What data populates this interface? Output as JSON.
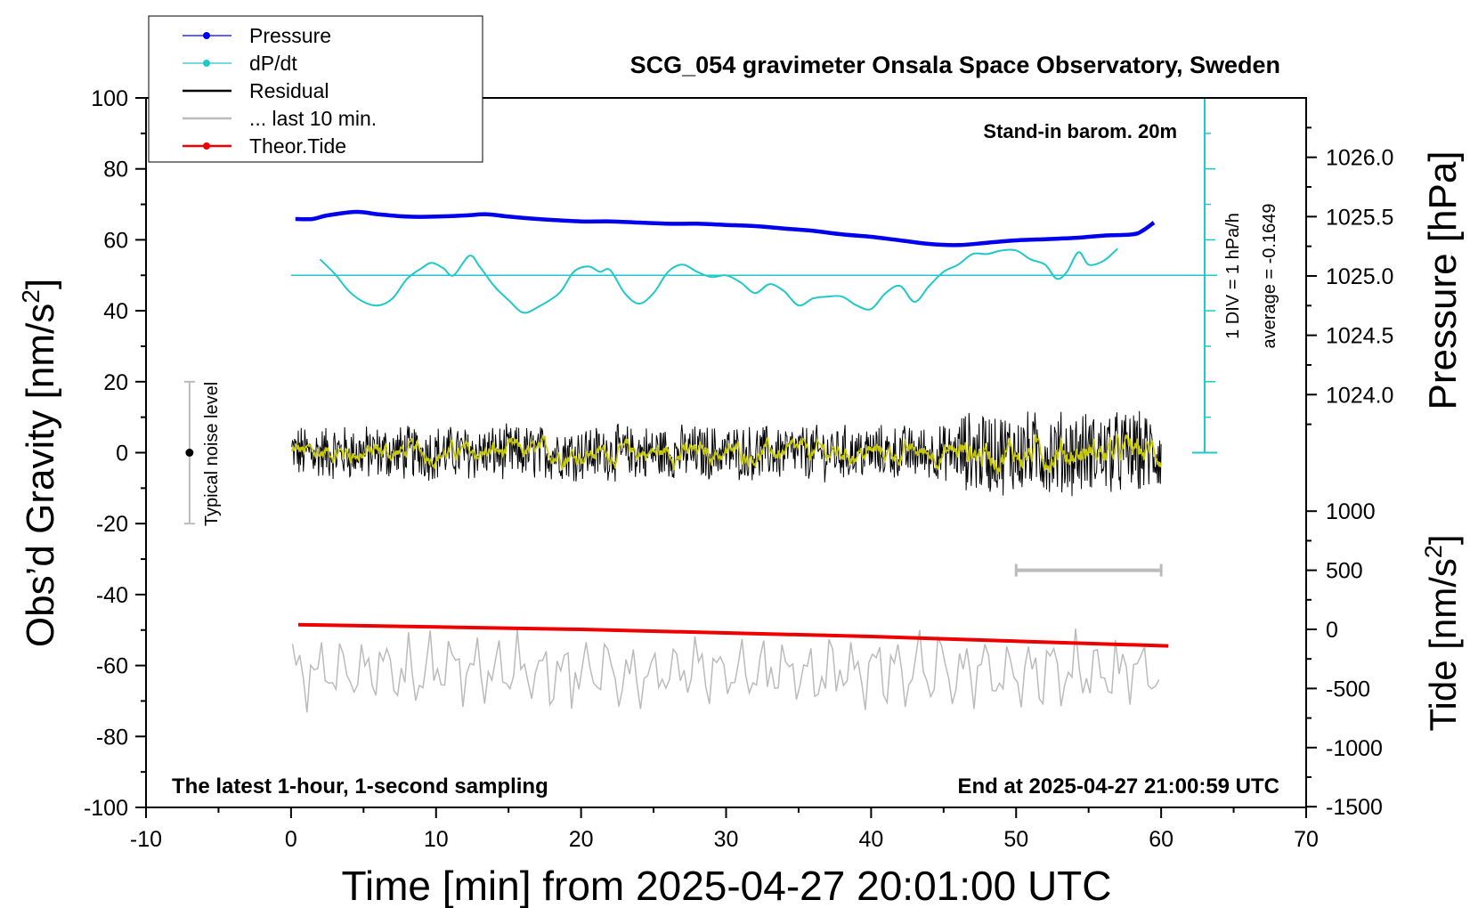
{
  "chart_data": {
    "type": "line",
    "title": "SCG_054 gravimeter Onsala Space Observatory, Sweden",
    "xlabel": "Time [min] from 2025-04-27 20:01:00 UTC",
    "ylabel_left": "Obs’d Gravity [nm/s",
    "ylabel_left_sup": "2",
    "ylabel_left_end": "]",
    "ylabel_right_pressure": "Pressure [hPa]",
    "ylabel_right_tide": "Tide [nm/s",
    "ylabel_right_tide_sup": "2",
    "ylabel_right_tide_end": "]",
    "xlim": [
      -10,
      70
    ],
    "ylim_left": [
      -100,
      100
    ],
    "pressure_ylim": [
      1023.5,
      1026.5
    ],
    "tide_ylim": [
      -1500,
      1000
    ],
    "xticks": [
      "-10",
      "0",
      "10",
      "20",
      "30",
      "40",
      "50",
      "60",
      "70"
    ],
    "yticks_left": [
      "100",
      "80",
      "60",
      "40",
      "20",
      "0",
      "-20",
      "-40",
      "-60",
      "-80",
      "-100"
    ],
    "pressure_ticks": [
      "1026.0",
      "1025.5",
      "1025.0",
      "1024.5",
      "1024.0"
    ],
    "tide_ticks": [
      "1000",
      "500",
      "0",
      "-500",
      "-1000",
      "-1500"
    ],
    "legend_position": "top-left",
    "legend": [
      {
        "name": "Pressure",
        "color": "#0000ee",
        "marker": true
      },
      {
        "name": "dP/dt",
        "color": "#20c8c8",
        "marker": true
      },
      {
        "name": "Residual",
        "color": "#000000",
        "marker": false
      },
      {
        "name": "... last 10 min.",
        "color": "#bbbbbb",
        "marker": false
      },
      {
        "name": "Theor.Tide",
        "color": "#ee0000",
        "marker": true
      }
    ],
    "annotations": {
      "barometer": "Stand-in barom. 20m",
      "div_label": "1 DIV = 1 hPa/h",
      "average": "average = -0.1649",
      "noise": "Typical noise level",
      "bottom_left": "The latest 1-hour, 1-second sampling",
      "bottom_right": "End at 2025-04-27 21:00:59 UTC"
    },
    "pressure_series": {
      "x": [
        0.3,
        1.5,
        2.5,
        4.5,
        6,
        8,
        10,
        12,
        13.5,
        15,
        17,
        20,
        22,
        24,
        26,
        28,
        30,
        32,
        34,
        36,
        38,
        40,
        42,
        44,
        46,
        48,
        50,
        52,
        54,
        56,
        58,
        58.7,
        59.5
      ],
      "y": [
        1025.48,
        1025.48,
        1025.51,
        1025.54,
        1025.52,
        1025.5,
        1025.5,
        1025.51,
        1025.52,
        1025.5,
        1025.48,
        1025.46,
        1025.46,
        1025.45,
        1025.44,
        1025.44,
        1025.43,
        1025.42,
        1025.4,
        1025.38,
        1025.35,
        1025.33,
        1025.3,
        1025.27,
        1025.26,
        1025.28,
        1025.3,
        1025.31,
        1025.32,
        1025.34,
        1025.35,
        1025.38,
        1025.45
      ]
    },
    "dpdt_series": {
      "x": [
        2,
        3,
        4,
        5,
        6,
        7,
        8,
        9,
        9.7,
        10.5,
        11.2,
        12.3,
        13,
        14,
        15,
        16,
        17,
        18.5,
        19.5,
        20.5,
        21.3,
        22,
        23,
        24,
        25,
        26,
        27,
        28,
        29,
        30,
        31,
        32,
        33,
        34,
        35,
        36,
        37,
        38,
        39,
        40,
        41,
        42,
        43,
        44,
        45,
        46,
        47,
        48,
        49,
        50,
        51,
        52,
        52.8,
        53.5,
        54.3,
        55,
        56,
        57
      ],
      "y": [
        0.45,
        0.05,
        -0.45,
        -0.75,
        -0.85,
        -0.65,
        -0.1,
        0.2,
        0.35,
        0.2,
        0.0,
        0.55,
        0.25,
        -0.3,
        -0.7,
        -1.05,
        -0.9,
        -0.5,
        0.1,
        0.25,
        0.1,
        0.15,
        -0.5,
        -0.8,
        -0.5,
        0.1,
        0.3,
        0.1,
        -0.05,
        0.0,
        -0.2,
        -0.5,
        -0.25,
        -0.45,
        -0.85,
        -0.65,
        -0.6,
        -0.6,
        -0.85,
        -0.95,
        -0.5,
        -0.3,
        -0.75,
        -0.3,
        0.1,
        0.3,
        0.6,
        0.6,
        0.7,
        0.7,
        0.45,
        0.3,
        -0.1,
        0.1,
        0.65,
        0.3,
        0.4,
        0.75
      ]
    },
    "dpdt_baseline": 50,
    "dpdt_div_scale": 10,
    "tide_series": {
      "x": [
        0.5,
        10,
        20,
        30,
        40,
        50,
        60.5
      ],
      "y": [
        40,
        20,
        0,
        -30,
        -60,
        -100,
        -140
      ]
    },
    "noise_bar": {
      "x": -7,
      "center": 0,
      "half_height": 20
    }
  }
}
